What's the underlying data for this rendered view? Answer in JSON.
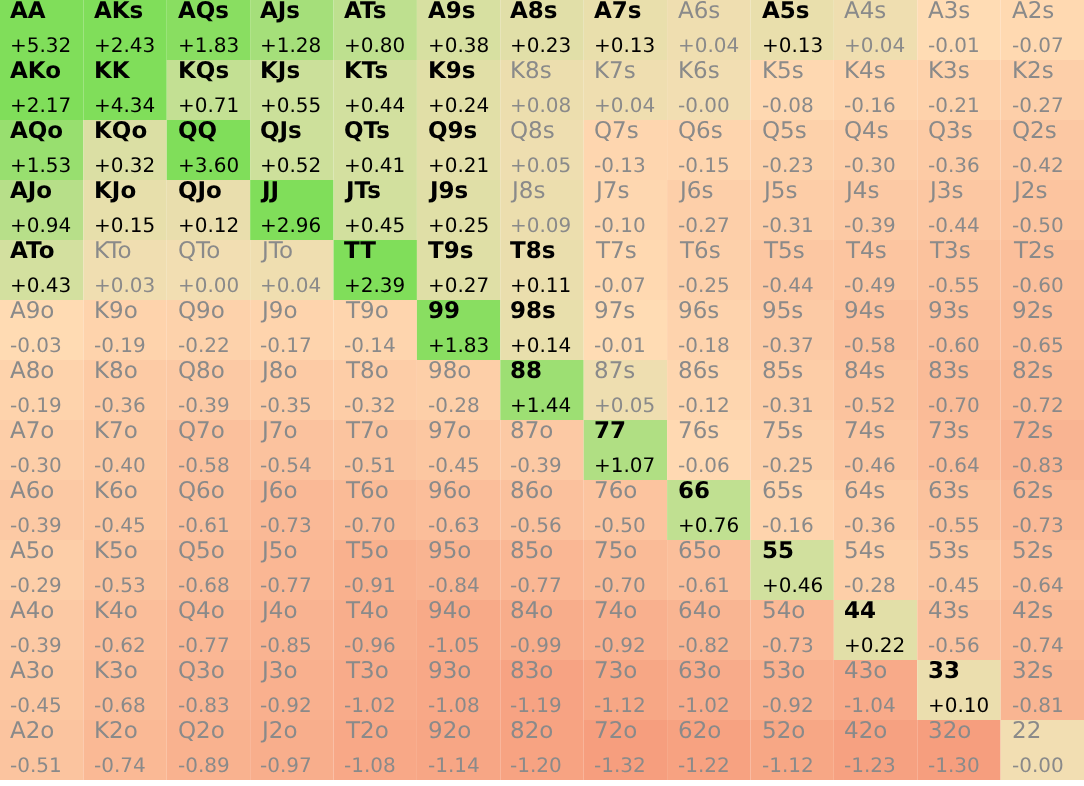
{
  "chart_data": {
    "type": "heatmap",
    "categories": [
      null,
      null,
      null,
      null,
      null,
      null,
      null,
      null,
      null,
      null,
      null,
      null,
      null
    ],
    "y_categories": [
      null,
      null,
      null,
      null,
      null,
      null,
      null,
      null,
      null,
      null,
      null,
      null,
      null
    ],
    "cells": [
      [
        5.32,
        2.43,
        1.83,
        1.28,
        0.8,
        0.38,
        0.23,
        0.13,
        0.04,
        0.13,
        0.04,
        -0.01,
        -0.07
      ],
      [
        2.17,
        4.34,
        0.71,
        0.55,
        0.44,
        0.24,
        0.08,
        0.04,
        -0.0,
        -0.08,
        -0.16,
        -0.21,
        -0.27
      ],
      [
        1.53,
        0.32,
        3.6,
        0.52,
        0.41,
        0.21,
        0.05,
        -0.13,
        -0.15,
        -0.23,
        -0.3,
        -0.36,
        -0.42
      ],
      [
        0.94,
        0.15,
        0.12,
        2.96,
        0.45,
        0.25,
        0.09,
        -0.1,
        -0.27,
        -0.31,
        -0.39,
        -0.44,
        -0.5
      ],
      [
        0.43,
        0.03,
        0.0,
        0.04,
        2.39,
        0.27,
        0.11,
        -0.07,
        -0.25,
        -0.44,
        -0.49,
        -0.55,
        -0.6
      ],
      [
        -0.03,
        -0.19,
        -0.22,
        -0.17,
        -0.14,
        1.83,
        0.14,
        -0.01,
        -0.18,
        -0.37,
        -0.58,
        -0.6,
        -0.65
      ],
      [
        -0.19,
        -0.36,
        -0.39,
        -0.35,
        -0.32,
        -0.28,
        1.44,
        0.05,
        -0.12,
        -0.31,
        -0.52,
        -0.7,
        -0.72
      ],
      [
        -0.3,
        -0.4,
        -0.58,
        -0.54,
        -0.51,
        -0.45,
        -0.39,
        1.07,
        -0.06,
        -0.25,
        -0.46,
        -0.64,
        -0.83
      ],
      [
        -0.39,
        -0.45,
        -0.61,
        -0.73,
        -0.7,
        -0.63,
        -0.56,
        -0.5,
        0.76,
        -0.16,
        -0.36,
        -0.55,
        -0.73
      ],
      [
        -0.29,
        -0.53,
        -0.68,
        -0.77,
        -0.91,
        -0.84,
        -0.77,
        -0.7,
        -0.61,
        0.46,
        -0.28,
        -0.45,
        -0.64
      ],
      [
        -0.39,
        -0.62,
        -0.77,
        -0.85,
        -0.96,
        -1.05,
        -0.99,
        -0.92,
        -0.82,
        -0.73,
        0.22,
        -0.56,
        -0.74
      ],
      [
        -0.45,
        -0.68,
        -0.83,
        -0.92,
        -1.02,
        -1.08,
        -1.19,
        -1.12,
        -1.02,
        -0.92,
        -1.04,
        0.1,
        -0.81
      ],
      [
        -0.51,
        -0.74,
        -0.89,
        -0.97,
        -1.08,
        -1.14,
        -1.2,
        -1.32,
        -1.22,
        -1.12,
        -1.23,
        -1.3,
        -0.0
      ]
    ],
    "cell_labels": [
      [
        "+5.32",
        "+2.43",
        "+1.83",
        "+1.28",
        "+0.80",
        "+0.38",
        "+0.23",
        "+0.13",
        "+0.04",
        "+0.13",
        "+0.04",
        "-0.01",
        "-0.07"
      ],
      [
        "+2.17",
        "+4.34",
        "+0.71",
        "+0.55",
        "+0.44",
        "+0.24",
        "+0.08",
        "+0.04",
        "-0.00",
        "-0.08",
        "-0.16",
        "-0.21",
        "-0.27"
      ],
      [
        "+1.53",
        "+0.32",
        "+3.60",
        "+0.52",
        "+0.41",
        "+0.21",
        "+0.05",
        "-0.13",
        "-0.15",
        "-0.23",
        "-0.30",
        "-0.36",
        "-0.42"
      ],
      [
        "+0.94",
        "+0.15",
        "+0.12",
        "+2.96",
        "+0.45",
        "+0.25",
        "+0.09",
        "-0.10",
        "-0.27",
        "-0.31",
        "-0.39",
        "-0.44",
        "-0.50"
      ],
      [
        "+0.43",
        "+0.03",
        "+0.00",
        "+0.04",
        "+2.39",
        "+0.27",
        "+0.11",
        "-0.07",
        "-0.25",
        "-0.44",
        "-0.49",
        "-0.55",
        "-0.60"
      ],
      [
        "-0.03",
        "-0.19",
        "-0.22",
        "-0.17",
        "-0.14",
        "+1.83",
        "+0.14",
        "-0.01",
        "-0.18",
        "-0.37",
        "-0.58",
        "-0.60",
        "-0.65"
      ],
      [
        "-0.19",
        "-0.36",
        "-0.39",
        "-0.35",
        "-0.32",
        "-0.28",
        "+1.44",
        "+0.05",
        "-0.12",
        "-0.31",
        "-0.52",
        "-0.70",
        "-0.72"
      ],
      [
        "-0.30",
        "-0.40",
        "-0.58",
        "-0.54",
        "-0.51",
        "-0.45",
        "-0.39",
        "+1.07",
        "-0.06",
        "-0.25",
        "-0.46",
        "-0.64",
        "-0.83"
      ],
      [
        "-0.39",
        "-0.45",
        "-0.61",
        "-0.73",
        "-0.70",
        "-0.63",
        "-0.56",
        "-0.50",
        "+0.76",
        "-0.16",
        "-0.36",
        "-0.55",
        "-0.73"
      ],
      [
        "-0.29",
        "-0.53",
        "-0.68",
        "-0.77",
        "-0.91",
        "-0.84",
        "-0.77",
        "-0.70",
        "-0.61",
        "+0.46",
        "-0.28",
        "-0.45",
        "-0.64"
      ],
      [
        "-0.39",
        "-0.62",
        "-0.77",
        "-0.85",
        "-0.96",
        "-1.05",
        "-0.99",
        "-0.92",
        "-0.82",
        "-0.73",
        "+0.22",
        "-0.56",
        "-0.74"
      ],
      [
        "-0.45",
        "-0.68",
        "-0.83",
        "-0.92",
        "-1.02",
        "-1.08",
        "-1.19",
        "-1.12",
        "-1.02",
        "-0.92",
        "-1.04",
        "+0.10",
        "-0.81"
      ],
      [
        "-0.51",
        "-0.74",
        "-0.89",
        "-0.97",
        "-1.08",
        "-1.14",
        "-1.20",
        "-1.32",
        "-1.22",
        "-1.12",
        "-1.23",
        "-1.30",
        "-0.00"
      ]
    ],
    "annotations": [
      "AA",
      "AKs",
      "AQs",
      "AJs",
      "ATs",
      "A9s",
      "A8s",
      "A7s",
      "A6s",
      "A5s",
      "A4s",
      "A3s",
      "A2s",
      "AKo",
      "KK",
      "KQs",
      "KJs",
      "KTs",
      "K9s",
      "K8s",
      "K7s",
      "K6s",
      "K5s",
      "K4s",
      "K3s",
      "K2s",
      "AQo",
      "KQo",
      "QQ",
      "QJs",
      "QTs",
      "Q9s",
      "Q8s",
      "Q7s",
      "Q6s",
      "Q5s",
      "Q4s",
      "Q3s",
      "Q2s",
      "AJo",
      "KJo",
      "QJo",
      "JJ",
      "JTs",
      "J9s",
      "J8s",
      "J7s",
      "J6s",
      "J5s",
      "J4s",
      "J3s",
      "J2s",
      "ATo",
      "KTo",
      "QTo",
      "JTo",
      "TT",
      "T9s",
      "T8s",
      "T7s",
      "T6s",
      "T5s",
      "T4s",
      "T3s",
      "T2s",
      "A9o",
      "K9o",
      "Q9o",
      "J9o",
      "T9o",
      "99",
      "98s",
      "97s",
      "96s",
      "95s",
      "94s",
      "93s",
      "92s",
      "A8o",
      "K8o",
      "Q8o",
      "J8o",
      "T8o",
      "98o",
      "88",
      "87s",
      "86s",
      "85s",
      "84s",
      "83s",
      "82s",
      "A7o",
      "K7o",
      "Q7o",
      "J7o",
      "T7o",
      "97o",
      "87o",
      "77",
      "76s",
      "75s",
      "74s",
      "73s",
      "72s",
      "A6o",
      "K6o",
      "Q6o",
      "J6o",
      "T6o",
      "96o",
      "86o",
      "76o",
      "66",
      "65s",
      "64s",
      "63s",
      "62s",
      "A5o",
      "K5o",
      "Q5o",
      "J5o",
      "T5o",
      "95o",
      "85o",
      "75o",
      "65o",
      "55",
      "54s",
      "53s",
      "52s",
      "A4o",
      "K4o",
      "Q4o",
      "J4o",
      "T4o",
      "94o",
      "84o",
      "74o",
      "64o",
      "54o",
      "44",
      "43s",
      "42s",
      "A3o",
      "K3o",
      "Q3o",
      "J3o",
      "T3o",
      "93o",
      "83o",
      "73o",
      "63o",
      "53o",
      "43o",
      "33",
      "32s",
      "A2o",
      "K2o",
      "Q2o",
      "J2o",
      "T2o",
      "92o",
      "82o",
      "72o",
      "62o",
      "52o",
      "42o",
      "32o",
      "22"
    ]
  }
}
